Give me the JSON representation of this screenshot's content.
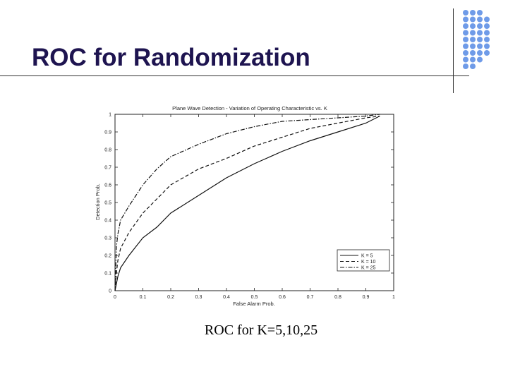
{
  "slide": {
    "title": "ROC for Randomization",
    "caption": "ROC for K=5,10,25",
    "dot_color": "#6f9be8"
  },
  "chart_data": {
    "type": "line",
    "title": "Plane Wave Detection - Variation of Operating Characteristic vs. K",
    "xlabel": "False Alarm Prob.",
    "ylabel": "Detection Prob.",
    "xlim": [
      0,
      1
    ],
    "ylim": [
      0,
      1
    ],
    "xticks": [
      "0",
      "0.1",
      "0.2",
      "0.3",
      "0.4",
      "0.5",
      "0.6",
      "0.7",
      "0.8",
      "0.9",
      "1"
    ],
    "yticks": [
      "0",
      "0.1",
      "0.2",
      "0.3",
      "0.4",
      "0.5",
      "0.6",
      "0.7",
      "0.8",
      "0.9",
      "1"
    ],
    "grid": false,
    "legend_position": "lower-right",
    "series": [
      {
        "name": "K = 5",
        "dash": "solid",
        "x": [
          0,
          0.01,
          0.02,
          0.05,
          0.1,
          0.15,
          0.2,
          0.3,
          0.4,
          0.5,
          0.6,
          0.7,
          0.8,
          0.9,
          0.95
        ],
        "y": [
          0,
          0.08,
          0.13,
          0.2,
          0.3,
          0.36,
          0.44,
          0.54,
          0.64,
          0.72,
          0.79,
          0.85,
          0.9,
          0.95,
          0.99
        ]
      },
      {
        "name": "K = 10",
        "dash": "dashed",
        "x": [
          0,
          0.005,
          0.01,
          0.02,
          0.05,
          0.1,
          0.15,
          0.2,
          0.3,
          0.4,
          0.5,
          0.6,
          0.7,
          0.8,
          0.9,
          0.95
        ],
        "y": [
          0,
          0.1,
          0.17,
          0.24,
          0.33,
          0.44,
          0.52,
          0.6,
          0.69,
          0.75,
          0.82,
          0.87,
          0.92,
          0.95,
          0.98,
          0.99
        ]
      },
      {
        "name": "K = 25",
        "dash": "dashdot",
        "x": [
          0,
          0.005,
          0.01,
          0.02,
          0.05,
          0.1,
          0.15,
          0.2,
          0.3,
          0.4,
          0.5,
          0.6,
          0.7,
          0.8,
          0.9,
          0.95
        ],
        "y": [
          0,
          0.25,
          0.32,
          0.4,
          0.48,
          0.6,
          0.69,
          0.76,
          0.83,
          0.89,
          0.93,
          0.96,
          0.97,
          0.98,
          0.99,
          1.0
        ]
      }
    ]
  }
}
